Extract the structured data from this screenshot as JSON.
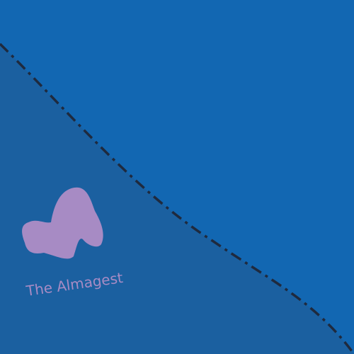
{
  "map": {
    "label": "The Almagest",
    "colors": {
      "ocean": "#1267b2",
      "land": "#1b60a0",
      "boundary": "#1f2a3e",
      "feature": "#a78bc4",
      "label": "#a78bc4"
    }
  }
}
